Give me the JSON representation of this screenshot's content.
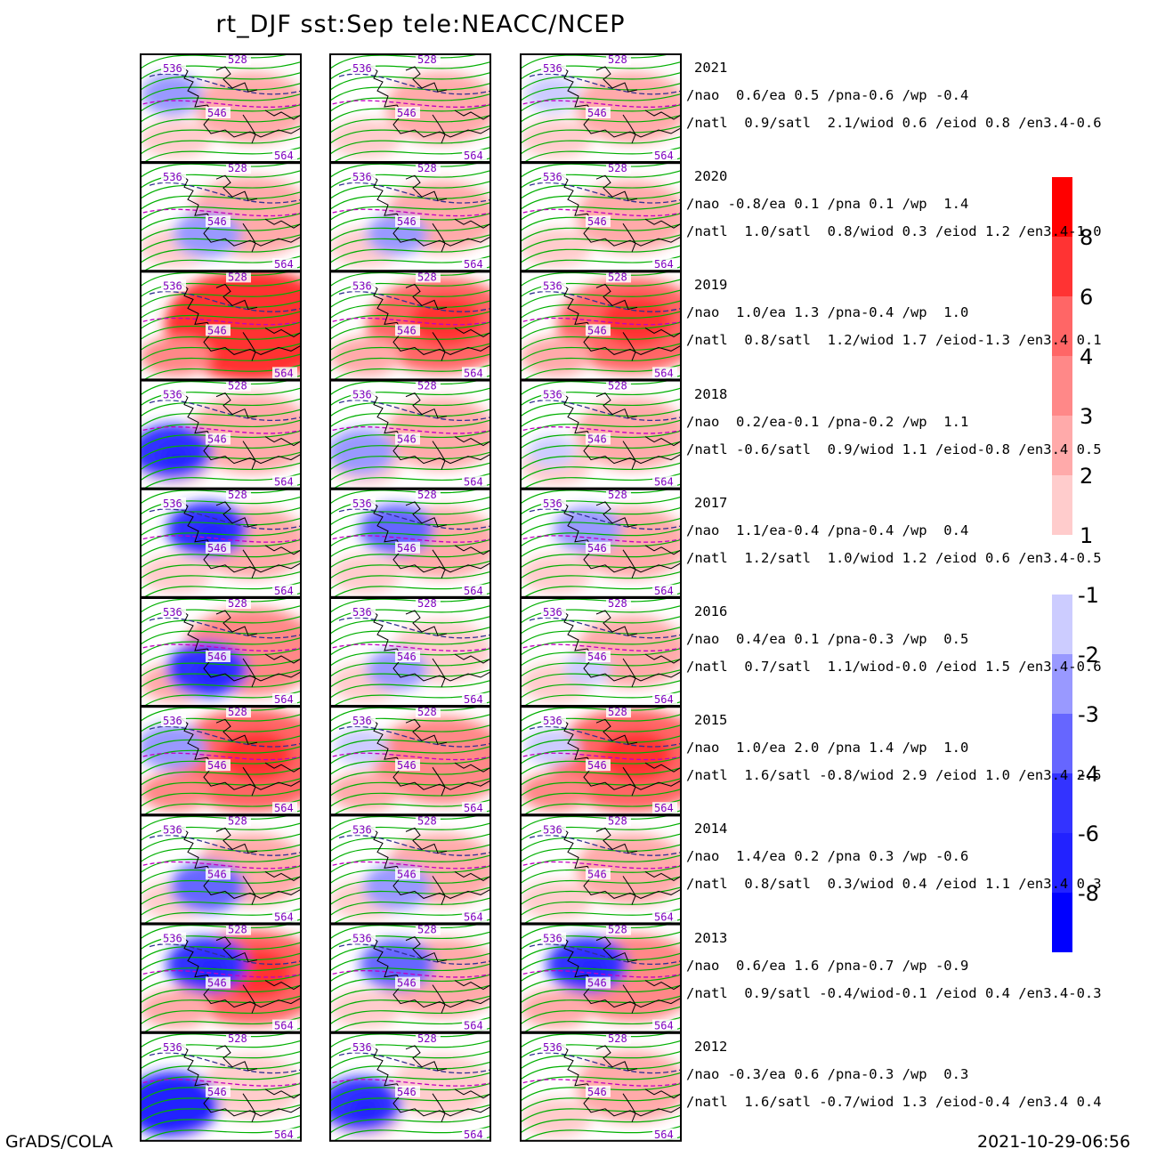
{
  "title": "rt_DJF  sst:Sep  tele:NEACC/NCEP",
  "footer": {
    "left": "GrADS/COLA",
    "right": "2021-10-29-06:56"
  },
  "contour_labels": [
    "528",
    "536",
    "546",
    "564"
  ],
  "years": [
    {
      "year": "2021",
      "line1": "/nao  0.6/ea 0.5 /pna-0.6 /wp -0.4",
      "line2": "/natl  0.9/satl  2.1/wiod 0.6 /eiod 0.8 /en3.4-0.6"
    },
    {
      "year": "2020",
      "line1": "/nao -0.8/ea 0.1 /pna 0.1 /wp  1.4",
      "line2": "/natl  1.0/satl  0.8/wiod 0.3 /eiod 1.2 /en3.4-1.0"
    },
    {
      "year": "2019",
      "line1": "/nao  1.0/ea 1.3 /pna-0.4 /wp  1.0",
      "line2": "/natl  0.8/satl  1.2/wiod 1.7 /eiod-1.3 /en3.4 0.1"
    },
    {
      "year": "2018",
      "line1": "/nao  0.2/ea-0.1 /pna-0.2 /wp  1.1",
      "line2": "/natl -0.6/satl  0.9/wiod 1.1 /eiod-0.8 /en3.4 0.5"
    },
    {
      "year": "2017",
      "line1": "/nao  1.1/ea-0.4 /pna-0.4 /wp  0.4",
      "line2": "/natl  1.2/satl  1.0/wiod 1.2 /eiod 0.6 /en3.4-0.5"
    },
    {
      "year": "2016",
      "line1": "/nao  0.4/ea 0.1 /pna-0.3 /wp  0.5",
      "line2": "/natl  0.7/satl  1.1/wiod-0.0 /eiod 1.5 /en3.4-0.6"
    },
    {
      "year": "2015",
      "line1": "/nao  1.0/ea 2.0 /pna 1.4 /wp  1.0",
      "line2": "/natl  1.6/satl -0.8/wiod 2.9 /eiod 1.0 /en3.4 2.5"
    },
    {
      "year": "2014",
      "line1": "/nao  1.4/ea 0.2 /pna 0.3 /wp -0.6",
      "line2": "/natl  0.8/satl  0.3/wiod 0.4 /eiod 1.1 /en3.4 0.3"
    },
    {
      "year": "2013",
      "line1": "/nao  0.6/ea 1.6 /pna-0.7 /wp -0.9",
      "line2": "/natl  0.9/satl -0.4/wiod-0.1 /eiod 0.4 /en3.4-0.3"
    },
    {
      "year": "2012",
      "line1": "/nao -0.3/ea 0.6 /pna-0.3 /wp  0.3",
      "line2": "/natl  1.6/satl -0.7/wiod 1.3 /eiod-0.4 /en3.4 0.4"
    }
  ],
  "chart_data": {
    "type": "heatmap",
    "title": "rt_DJF  sst:Sep  tele:NEACC/NCEP",
    "rows": [
      "2021",
      "2020",
      "2019",
      "2018",
      "2017",
      "2016",
      "2015",
      "2014",
      "2013",
      "2012"
    ],
    "columns": 3,
    "anomaly_intensity": [
      [
        [
          0.3,
          -0.3
        ],
        [
          0.3,
          0.1
        ],
        [
          0.3,
          -0.2
        ]
      ],
      [
        [
          0.4,
          -0.4
        ],
        [
          0.3,
          -0.3
        ],
        [
          0.3,
          0.0
        ]
      ],
      [
        [
          0.8,
          0.0
        ],
        [
          0.6,
          0.0
        ],
        [
          0.6,
          0.0
        ]
      ],
      [
        [
          0.4,
          -0.6
        ],
        [
          0.3,
          -0.4
        ],
        [
          0.3,
          -0.1
        ]
      ],
      [
        [
          0.3,
          -0.6
        ],
        [
          0.3,
          -0.5
        ],
        [
          0.3,
          -0.4
        ]
      ],
      [
        [
          0.5,
          -0.6
        ],
        [
          0.2,
          -0.3
        ],
        [
          0.3,
          -0.1
        ]
      ],
      [
        [
          0.7,
          -0.4
        ],
        [
          0.5,
          -0.2
        ],
        [
          0.7,
          -0.2
        ]
      ],
      [
        [
          0.3,
          -0.5
        ],
        [
          0.3,
          -0.4
        ],
        [
          0.3,
          0.0
        ]
      ],
      [
        [
          0.6,
          -0.6
        ],
        [
          0.4,
          -0.5
        ],
        [
          0.5,
          -0.6
        ]
      ],
      [
        [
          0.2,
          -0.8
        ],
        [
          0.2,
          -0.6
        ],
        [
          0.3,
          0.0
        ]
      ]
    ],
    "colorbar_positive": {
      "ticks": [
        "8",
        "6",
        "4",
        "3",
        "2",
        "1"
      ],
      "colors": [
        "#ff0000",
        "#ff3333",
        "#ff6666",
        "#ff8888",
        "#ffaaaa",
        "#ffcccc"
      ]
    },
    "colorbar_negative": {
      "ticks": [
        "-1",
        "-2",
        "-3",
        "-4",
        "-6",
        "-8"
      ],
      "colors": [
        "#ccccff",
        "#9999ff",
        "#6666ff",
        "#3333ff",
        "#2222ff",
        "#0000ff"
      ]
    },
    "colors": {
      "contour": "#00b000",
      "label": "#8000c0",
      "dashed_purple": "#c000c0",
      "dashed_navy": "#303090",
      "coast": "#000000"
    }
  }
}
